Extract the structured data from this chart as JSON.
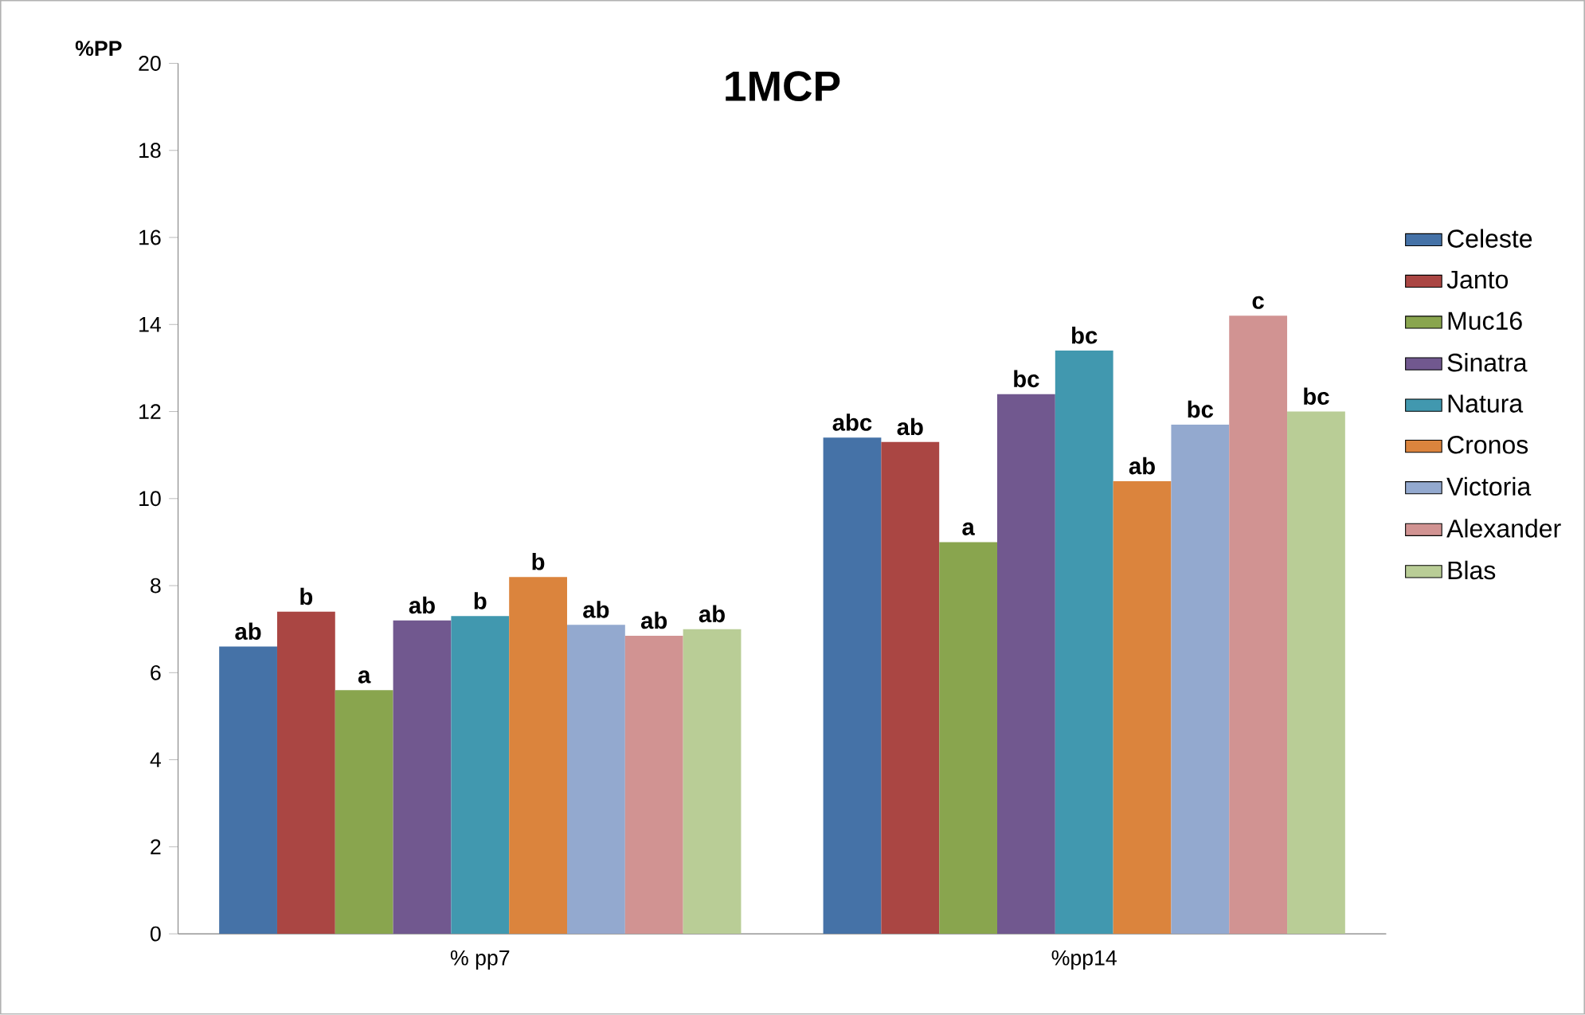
{
  "chart_data": {
    "type": "bar",
    "title": "1MCP",
    "ylabel": "%PP",
    "categories": [
      "% pp7",
      "%pp14"
    ],
    "series": [
      {
        "name": "Celeste",
        "color": "#4572a7",
        "values": [
          6.6,
          11.4
        ],
        "value_labels": [
          "ab",
          "abc"
        ]
      },
      {
        "name": "Janto",
        "color": "#aa4643",
        "values": [
          7.4,
          11.3
        ],
        "value_labels": [
          "b",
          "ab"
        ]
      },
      {
        "name": "Muc16",
        "color": "#89a54e",
        "values": [
          5.6,
          9.0
        ],
        "value_labels": [
          "a",
          "a"
        ]
      },
      {
        "name": "Sinatra",
        "color": "#71588f",
        "values": [
          7.2,
          12.4
        ],
        "value_labels": [
          "ab",
          "bc"
        ]
      },
      {
        "name": "Natura",
        "color": "#4198af",
        "values": [
          7.3,
          13.4
        ],
        "value_labels": [
          "b",
          "bc"
        ]
      },
      {
        "name": "Cronos",
        "color": "#db843d",
        "values": [
          8.2,
          10.4
        ],
        "value_labels": [
          "b",
          "ab"
        ]
      },
      {
        "name": "Victoria",
        "color": "#93a9cf",
        "values": [
          7.1,
          11.7
        ],
        "value_labels": [
          "ab",
          "bc"
        ]
      },
      {
        "name": "Alexander",
        "color": "#d19392",
        "values": [
          6.85,
          14.2
        ],
        "value_labels": [
          "ab",
          "c"
        ]
      },
      {
        "name": "Blas",
        "color": "#b9cd96",
        "values": [
          7.0,
          12.0
        ],
        "value_labels": [
          "ab",
          "bc"
        ]
      }
    ],
    "ylim": [
      0,
      20
    ],
    "yticks": [
      0,
      2,
      4,
      6,
      8,
      10,
      12,
      14,
      16,
      18,
      20
    ],
    "legend": "right"
  }
}
